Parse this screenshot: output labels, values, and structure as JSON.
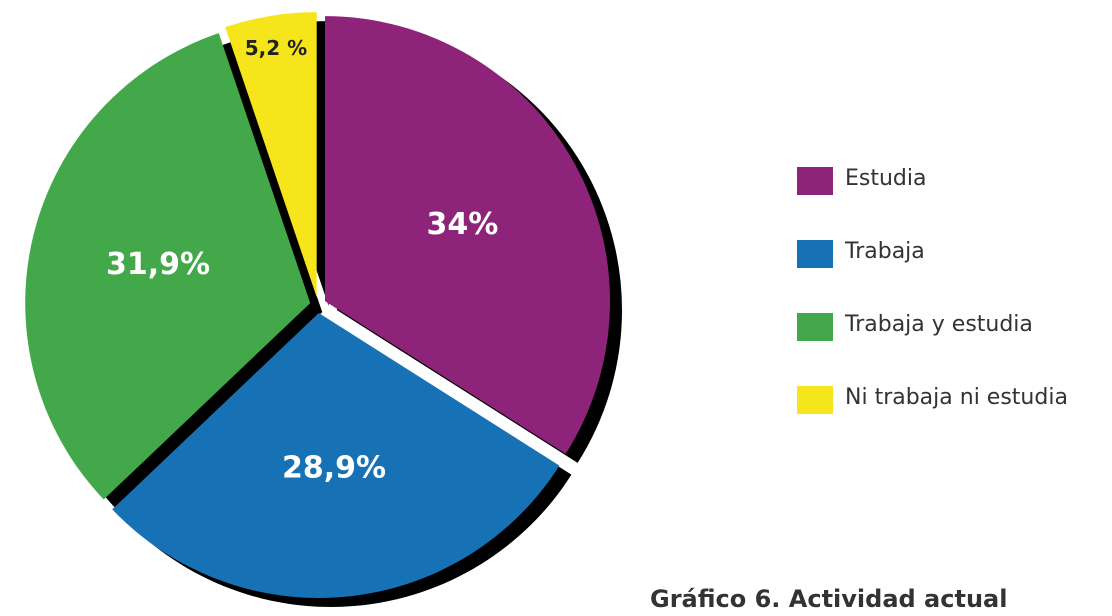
{
  "chart_data": {
    "type": "pie",
    "title": "Gráfico 6. Actividad actual",
    "categories": [
      "Estudia",
      "Trabaja",
      "Trabaja y estudia",
      "Ni trabaja ni estudia"
    ],
    "values": [
      34,
      28.9,
      31.9,
      5.2
    ],
    "value_labels": [
      "34%",
      "28,9%",
      "31,9%",
      "5,2 %"
    ],
    "colors": [
      "#8e2479",
      "#1771b5",
      "#43a84a",
      "#f6e51b"
    ],
    "legend": "right"
  }
}
